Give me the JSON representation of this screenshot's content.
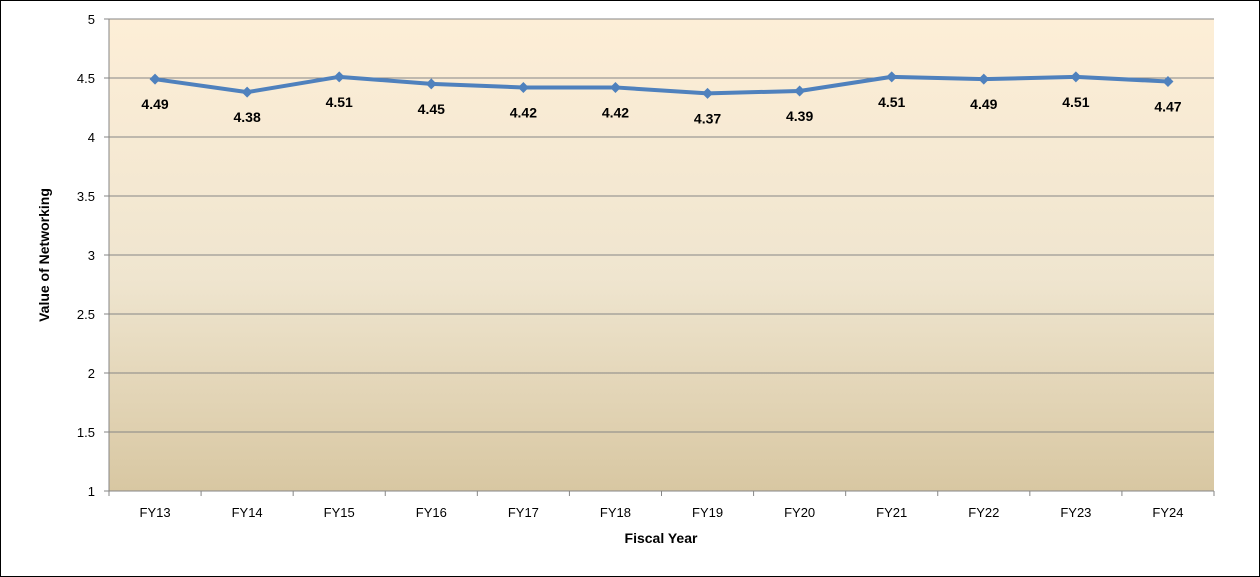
{
  "chart_data": {
    "type": "line",
    "title": "",
    "xlabel": "Fiscal Year",
    "ylabel": "Value of Networking",
    "categories": [
      "FY13",
      "FY14",
      "FY15",
      "FY16",
      "FY17",
      "FY18",
      "FY19",
      "FY20",
      "FY21",
      "FY22",
      "FY23",
      "FY24"
    ],
    "series": [
      {
        "values": [
          4.49,
          4.38,
          4.51,
          4.45,
          4.42,
          4.42,
          4.37,
          4.39,
          4.51,
          4.49,
          4.51,
          4.47
        ],
        "color": "#4f81bd",
        "marker": "diamond",
        "data_labels": [
          "4.49",
          "4.38",
          "4.51",
          "4.45",
          "4.42",
          "4.42",
          "4.37",
          "4.39",
          "4.51",
          "4.49",
          "4.51",
          "4.47"
        ]
      }
    ],
    "yticks": [
      "1",
      "1.5",
      "2",
      "2.5",
      "3",
      "3.5",
      "4",
      "4.5",
      "5"
    ],
    "ylim": [
      1,
      5
    ],
    "grid": true,
    "legend": "none",
    "plot_background": {
      "top_color": "#fdeed7",
      "bottom_color": "#d8c7a2"
    },
    "gridline_color": "#868686"
  }
}
